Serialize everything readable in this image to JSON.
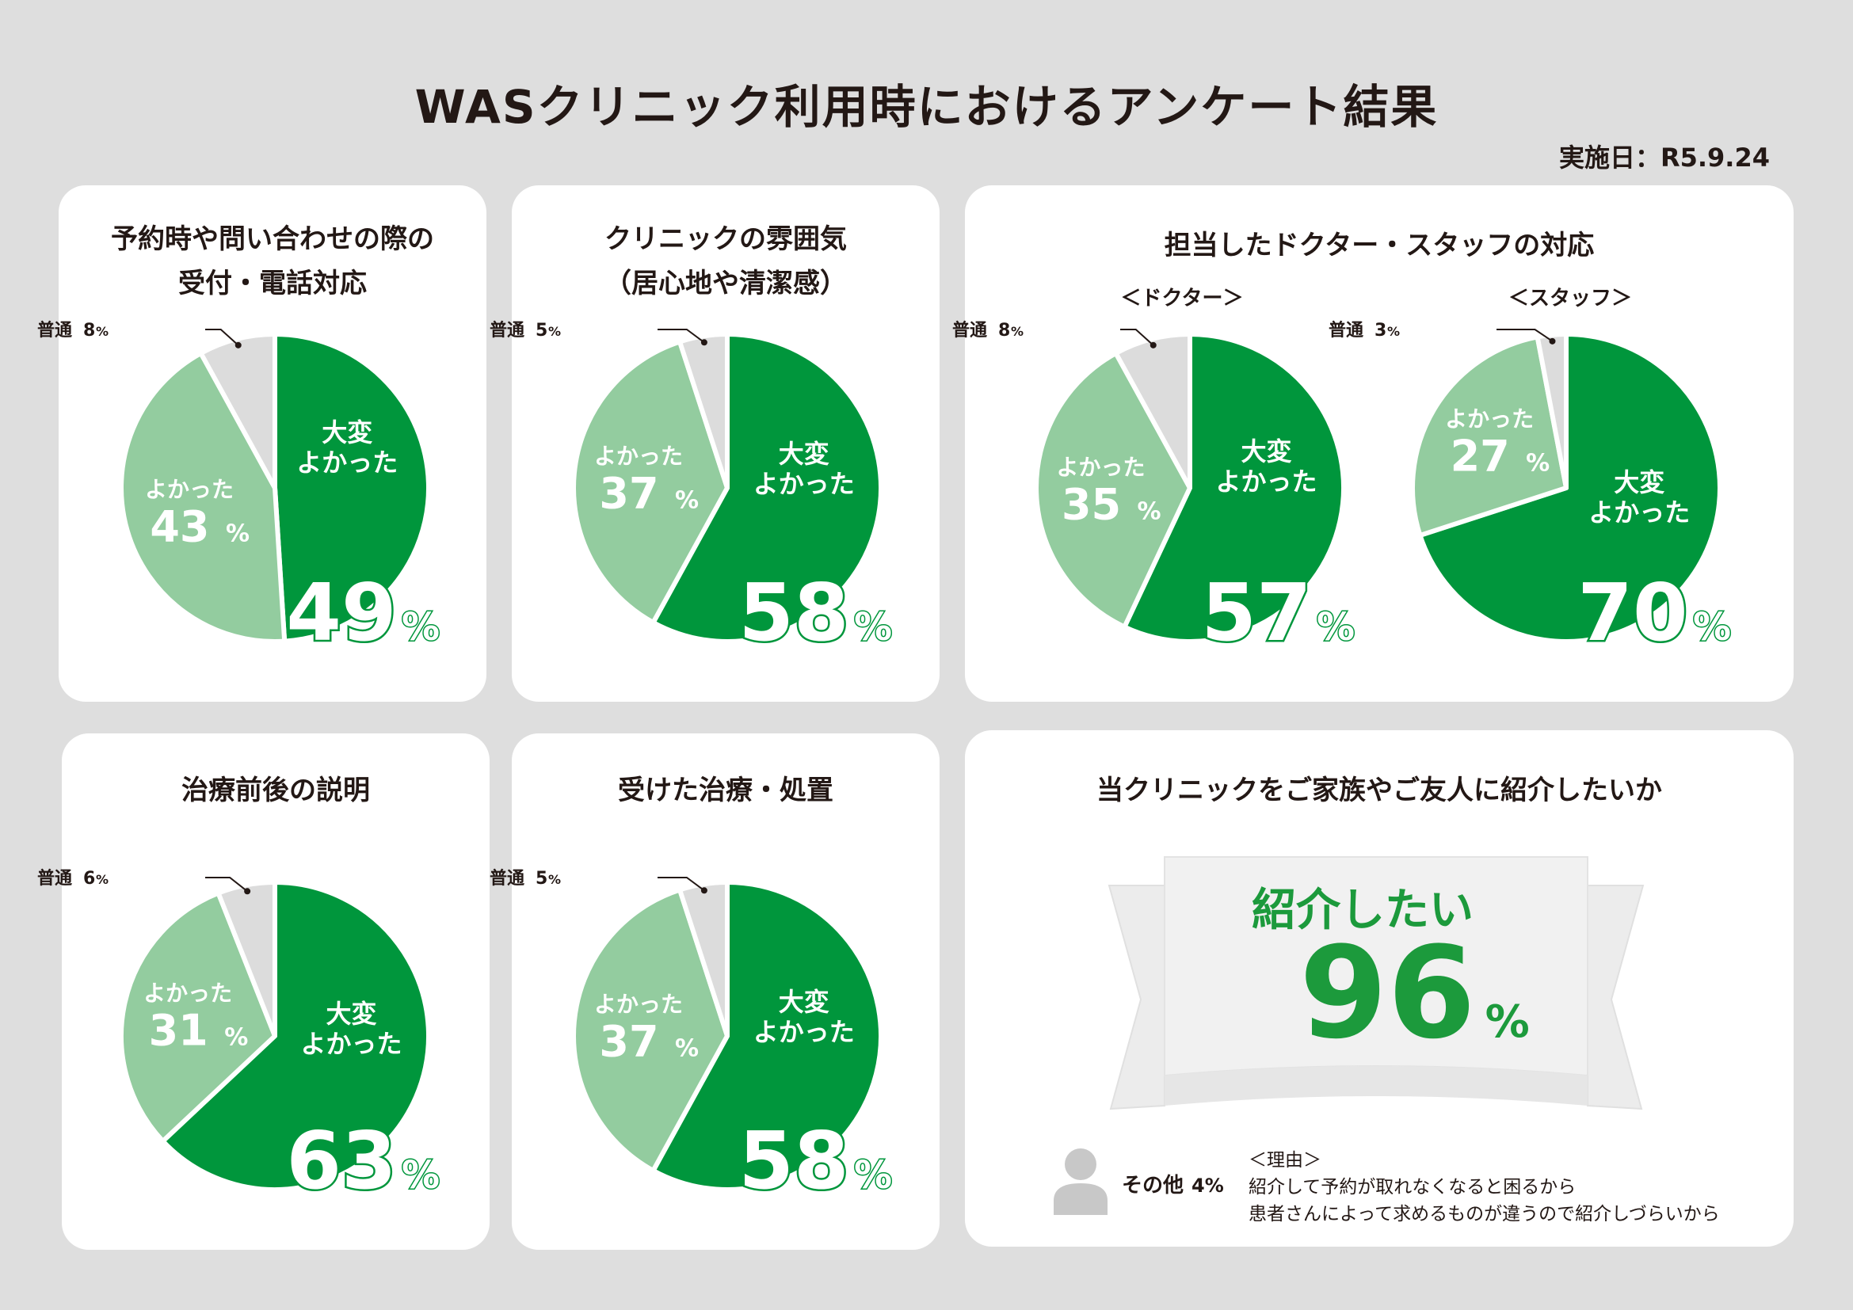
{
  "header": {
    "title": "WASクリニック利用時におけるアンケート結果",
    "date": "実施日：R5.9.24"
  },
  "colors": {
    "dark_green": "#00963c",
    "light_green": "#93cc9f",
    "gray": "#dcdcdc",
    "background": "#dedede",
    "card": "#ffffff"
  },
  "cards": {
    "reception": {
      "title_line1": "予約時や問い合わせの際の",
      "title_line2": "受付・電話対応"
    },
    "atmosphere": {
      "title_line1": "クリニックの雰囲気",
      "title_line2": "（居心地や清潔感）"
    },
    "staff": {
      "title": "担当したドクター・スタッフの対応",
      "sub_doctor": "＜ドクター＞",
      "sub_staff": "＜スタッフ＞"
    },
    "explanation": {
      "title": "治療前後の説明"
    },
    "treatment": {
      "title": "受けた治療・処置"
    },
    "recommend": {
      "title": "当クリニックをご家族やご友人に紹介したいか",
      "label": "紹介したい",
      "value": "96",
      "unit": "%",
      "other_label": "その他",
      "other_value": "4%",
      "reason_header": "＜理由＞",
      "reasons": [
        "紹介して予約が取れなくなると困るから",
        "患者さんによって求めるものが違うので紹介しづらいから"
      ]
    }
  },
  "chart_data": [
    {
      "type": "pie",
      "title": "予約時や問い合わせの際の受付・電話対応",
      "categories": [
        "大変よかった",
        "よかった",
        "普通"
      ],
      "values": [
        49,
        43,
        8
      ],
      "value_labels": [
        "49",
        "43",
        "8"
      ],
      "unit": "%",
      "label_top": "大変",
      "label_bottom": "よかった",
      "mid_label": "よかった",
      "small_label": "普通"
    },
    {
      "type": "pie",
      "title": "クリニックの雰囲気（居心地や清潔感）",
      "categories": [
        "大変よかった",
        "よかった",
        "普通"
      ],
      "values": [
        58,
        37,
        5
      ],
      "value_labels": [
        "58",
        "37",
        "5"
      ],
      "unit": "%",
      "label_top": "大変",
      "label_bottom": "よかった",
      "mid_label": "よかった",
      "small_label": "普通"
    },
    {
      "type": "pie",
      "title": "＜ドクター＞",
      "categories": [
        "大変よかった",
        "よかった",
        "普通"
      ],
      "values": [
        57,
        35,
        8
      ],
      "value_labels": [
        "57",
        "35",
        "8"
      ],
      "unit": "%",
      "label_top": "大変",
      "label_bottom": "よかった",
      "mid_label": "よかった",
      "small_label": "普通"
    },
    {
      "type": "pie",
      "title": "＜スタッフ＞",
      "categories": [
        "大変よかった",
        "よかった",
        "普通"
      ],
      "values": [
        70,
        27,
        3
      ],
      "value_labels": [
        "70",
        "27",
        "3"
      ],
      "unit": "%",
      "label_top": "大変",
      "label_bottom": "よかった",
      "mid_label": "よかった",
      "small_label": "普通"
    },
    {
      "type": "pie",
      "title": "治療前後の説明",
      "categories": [
        "大変よかった",
        "よかった",
        "普通"
      ],
      "values": [
        63,
        31,
        6
      ],
      "value_labels": [
        "63",
        "31",
        "6"
      ],
      "unit": "%",
      "label_top": "大変",
      "label_bottom": "よかった",
      "mid_label": "よかった",
      "small_label": "普通"
    },
    {
      "type": "pie",
      "title": "受けた治療・処置",
      "categories": [
        "大変よかった",
        "よかった",
        "普通"
      ],
      "values": [
        58,
        37,
        5
      ],
      "value_labels": [
        "58",
        "37",
        "5"
      ],
      "unit": "%",
      "label_top": "大変",
      "label_bottom": "よかった",
      "mid_label": "よかった",
      "small_label": "普通"
    }
  ]
}
